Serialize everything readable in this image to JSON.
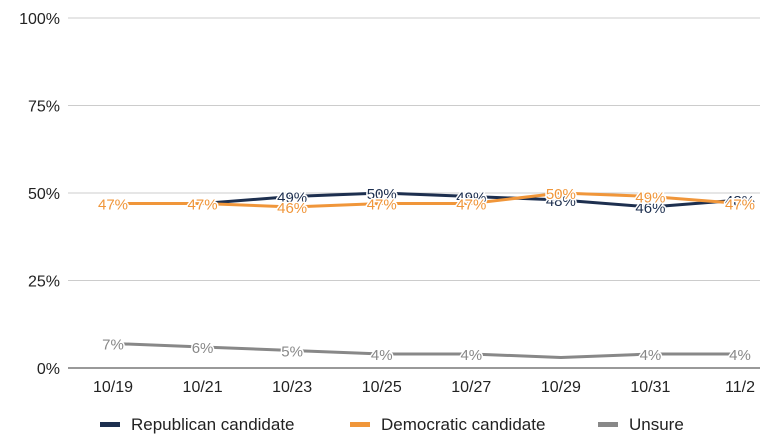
{
  "chart_data": {
    "type": "line",
    "categories": [
      "10/19",
      "10/21",
      "10/23",
      "10/25",
      "10/27",
      "10/29",
      "10/31",
      "11/2"
    ],
    "ylim": [
      0,
      100
    ],
    "yticks": [
      "0%",
      "25%",
      "50%",
      "75%",
      "100%"
    ],
    "ytick_values": [
      0,
      25,
      50,
      75,
      100
    ],
    "grid": true,
    "legend_position": "bottom",
    "series": [
      {
        "name": "Republican candidate",
        "color": "#1d2f4f",
        "values": [
          null,
          47,
          49,
          50,
          49,
          48,
          46,
          48
        ],
        "labels": [
          "",
          "",
          "49%",
          "50%",
          "49%",
          "48%",
          "46%",
          "48%"
        ]
      },
      {
        "name": "Democratic candidate",
        "color": "#f0963a",
        "values": [
          47,
          47,
          46,
          47,
          47,
          50,
          49,
          47
        ],
        "labels": [
          "47%",
          "47%",
          "46%",
          "47%",
          "47%",
          "50%",
          "49%",
          "47%"
        ]
      },
      {
        "name": "Unsure",
        "color": "#888888",
        "values": [
          7,
          6,
          5,
          4,
          4,
          3,
          4,
          4
        ],
        "labels": [
          "7%",
          "6%",
          "5%",
          "4%",
          "4%",
          "",
          "4%",
          "4%"
        ]
      }
    ]
  }
}
